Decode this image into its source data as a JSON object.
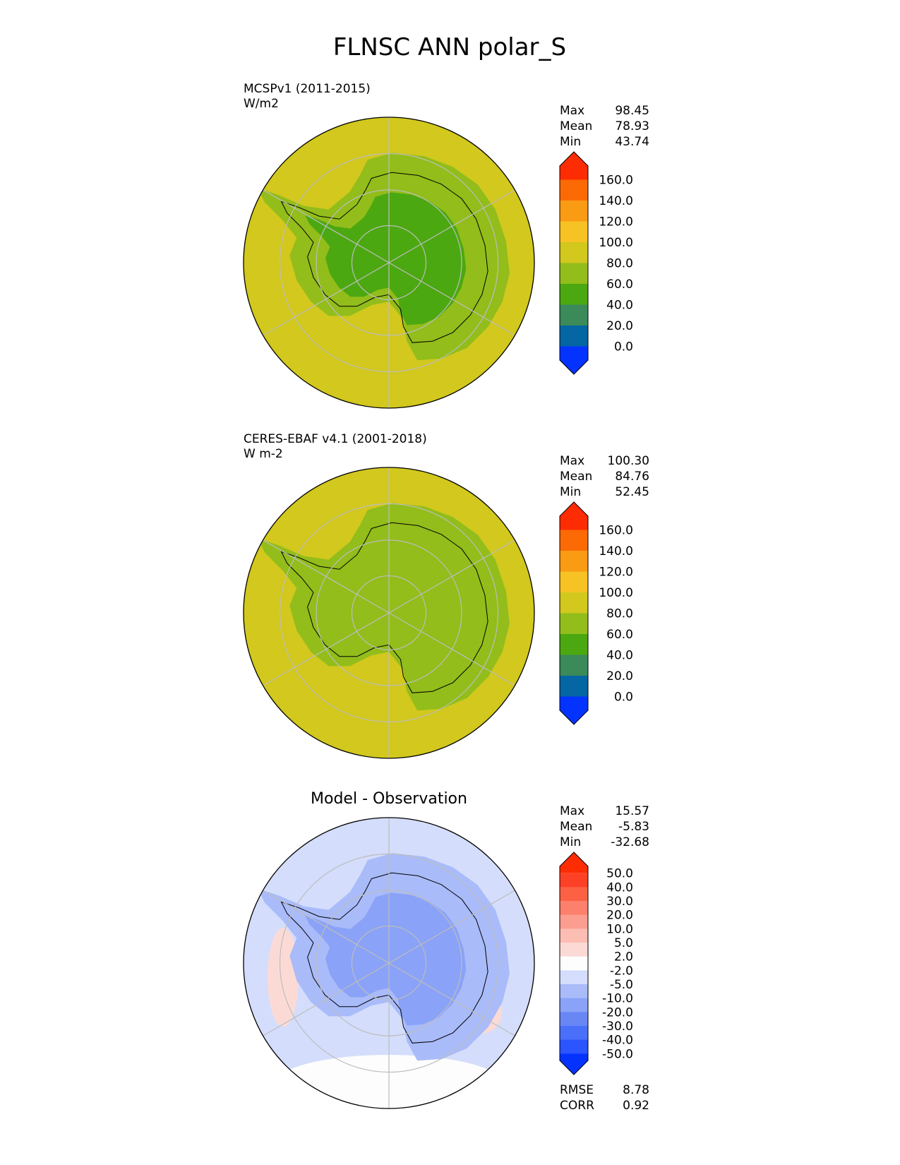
{
  "figure": {
    "title": "FLNSC ANN polar_S"
  },
  "colors": {
    "land_outline": "#000000",
    "grid": "#bdbdbd",
    "background": "#ffffff"
  },
  "chart_data": [
    {
      "type": "heatmap",
      "projection": "south-polar-stereographic",
      "label": "MCSPv1 (2011-2015)",
      "units": "W/m2",
      "stats": [
        {
          "name": "Max",
          "value": "98.45"
        },
        {
          "name": "Mean",
          "value": "78.93"
        },
        {
          "name": "Min",
          "value": "43.74"
        }
      ],
      "colorbar": {
        "levels": [
          "0.0",
          "20.0",
          "40.0",
          "60.0",
          "80.0",
          "100.0",
          "120.0",
          "140.0",
          "160.0"
        ],
        "colors": [
          "#0433ff",
          "#0466a3",
          "#3a8a5a",
          "#4ba810",
          "#92bd1a",
          "#d2c81e",
          "#f7c223",
          "#fa9b14",
          "#fb6a05",
          "#fe2c02"
        ],
        "extend": "both"
      },
      "field": {
        "ocean": "#d2c81e",
        "coast": "#92bd1a",
        "interior": "#4ba810",
        "mean": 78.93
      }
    },
    {
      "type": "heatmap",
      "projection": "south-polar-stereographic",
      "label": "CERES-EBAF v4.1 (2001-2018)",
      "units": "W m-2",
      "stats": [
        {
          "name": "Max",
          "value": "100.30"
        },
        {
          "name": "Mean",
          "value": "84.76"
        },
        {
          "name": "Min",
          "value": "52.45"
        }
      ],
      "colorbar": {
        "levels": [
          "0.0",
          "20.0",
          "40.0",
          "60.0",
          "80.0",
          "100.0",
          "120.0",
          "140.0",
          "160.0"
        ],
        "colors": [
          "#0433ff",
          "#0466a3",
          "#3a8a5a",
          "#4ba810",
          "#92bd1a",
          "#d2c81e",
          "#f7c223",
          "#fa9b14",
          "#fb6a05",
          "#fe2c02"
        ],
        "extend": "both"
      },
      "field": {
        "ocean": "#d2c81e",
        "coast": "#92bd1a",
        "interior": "#92bd1a",
        "mean": 84.76
      }
    },
    {
      "type": "heatmap",
      "projection": "south-polar-stereographic",
      "title": "Model - Observation",
      "stats": [
        {
          "name": "Max",
          "value": "15.57"
        },
        {
          "name": "Mean",
          "value": "-5.83"
        },
        {
          "name": "Min",
          "value": "-32.68"
        }
      ],
      "metrics": [
        {
          "name": "RMSE",
          "value": "8.78"
        },
        {
          "name": "CORR",
          "value": "0.92"
        }
      ],
      "colorbar": {
        "levels": [
          "-50.0",
          "-40.0",
          "-30.0",
          "-20.0",
          "-10.0",
          "-5.0",
          "-2.0",
          "2.0",
          "5.0",
          "10.0",
          "20.0",
          "30.0",
          "40.0",
          "50.0"
        ],
        "colors": [
          "#0433ff",
          "#2a55ff",
          "#4a6ff9",
          "#6887f4",
          "#8aa2f7",
          "#a9bbf9",
          "#d4ddfb",
          "#fdfdfd",
          "#fbdad6",
          "#fcbdb3",
          "#fc9e8f",
          "#fc806b",
          "#fc6144",
          "#fd4126",
          "#fe2c02"
        ],
        "extend": "both"
      },
      "field": {
        "ocean": "#d4ddfb",
        "coast": "#a9bbf9",
        "interior": "#8aa2f7",
        "mean": -5.83
      }
    }
  ]
}
